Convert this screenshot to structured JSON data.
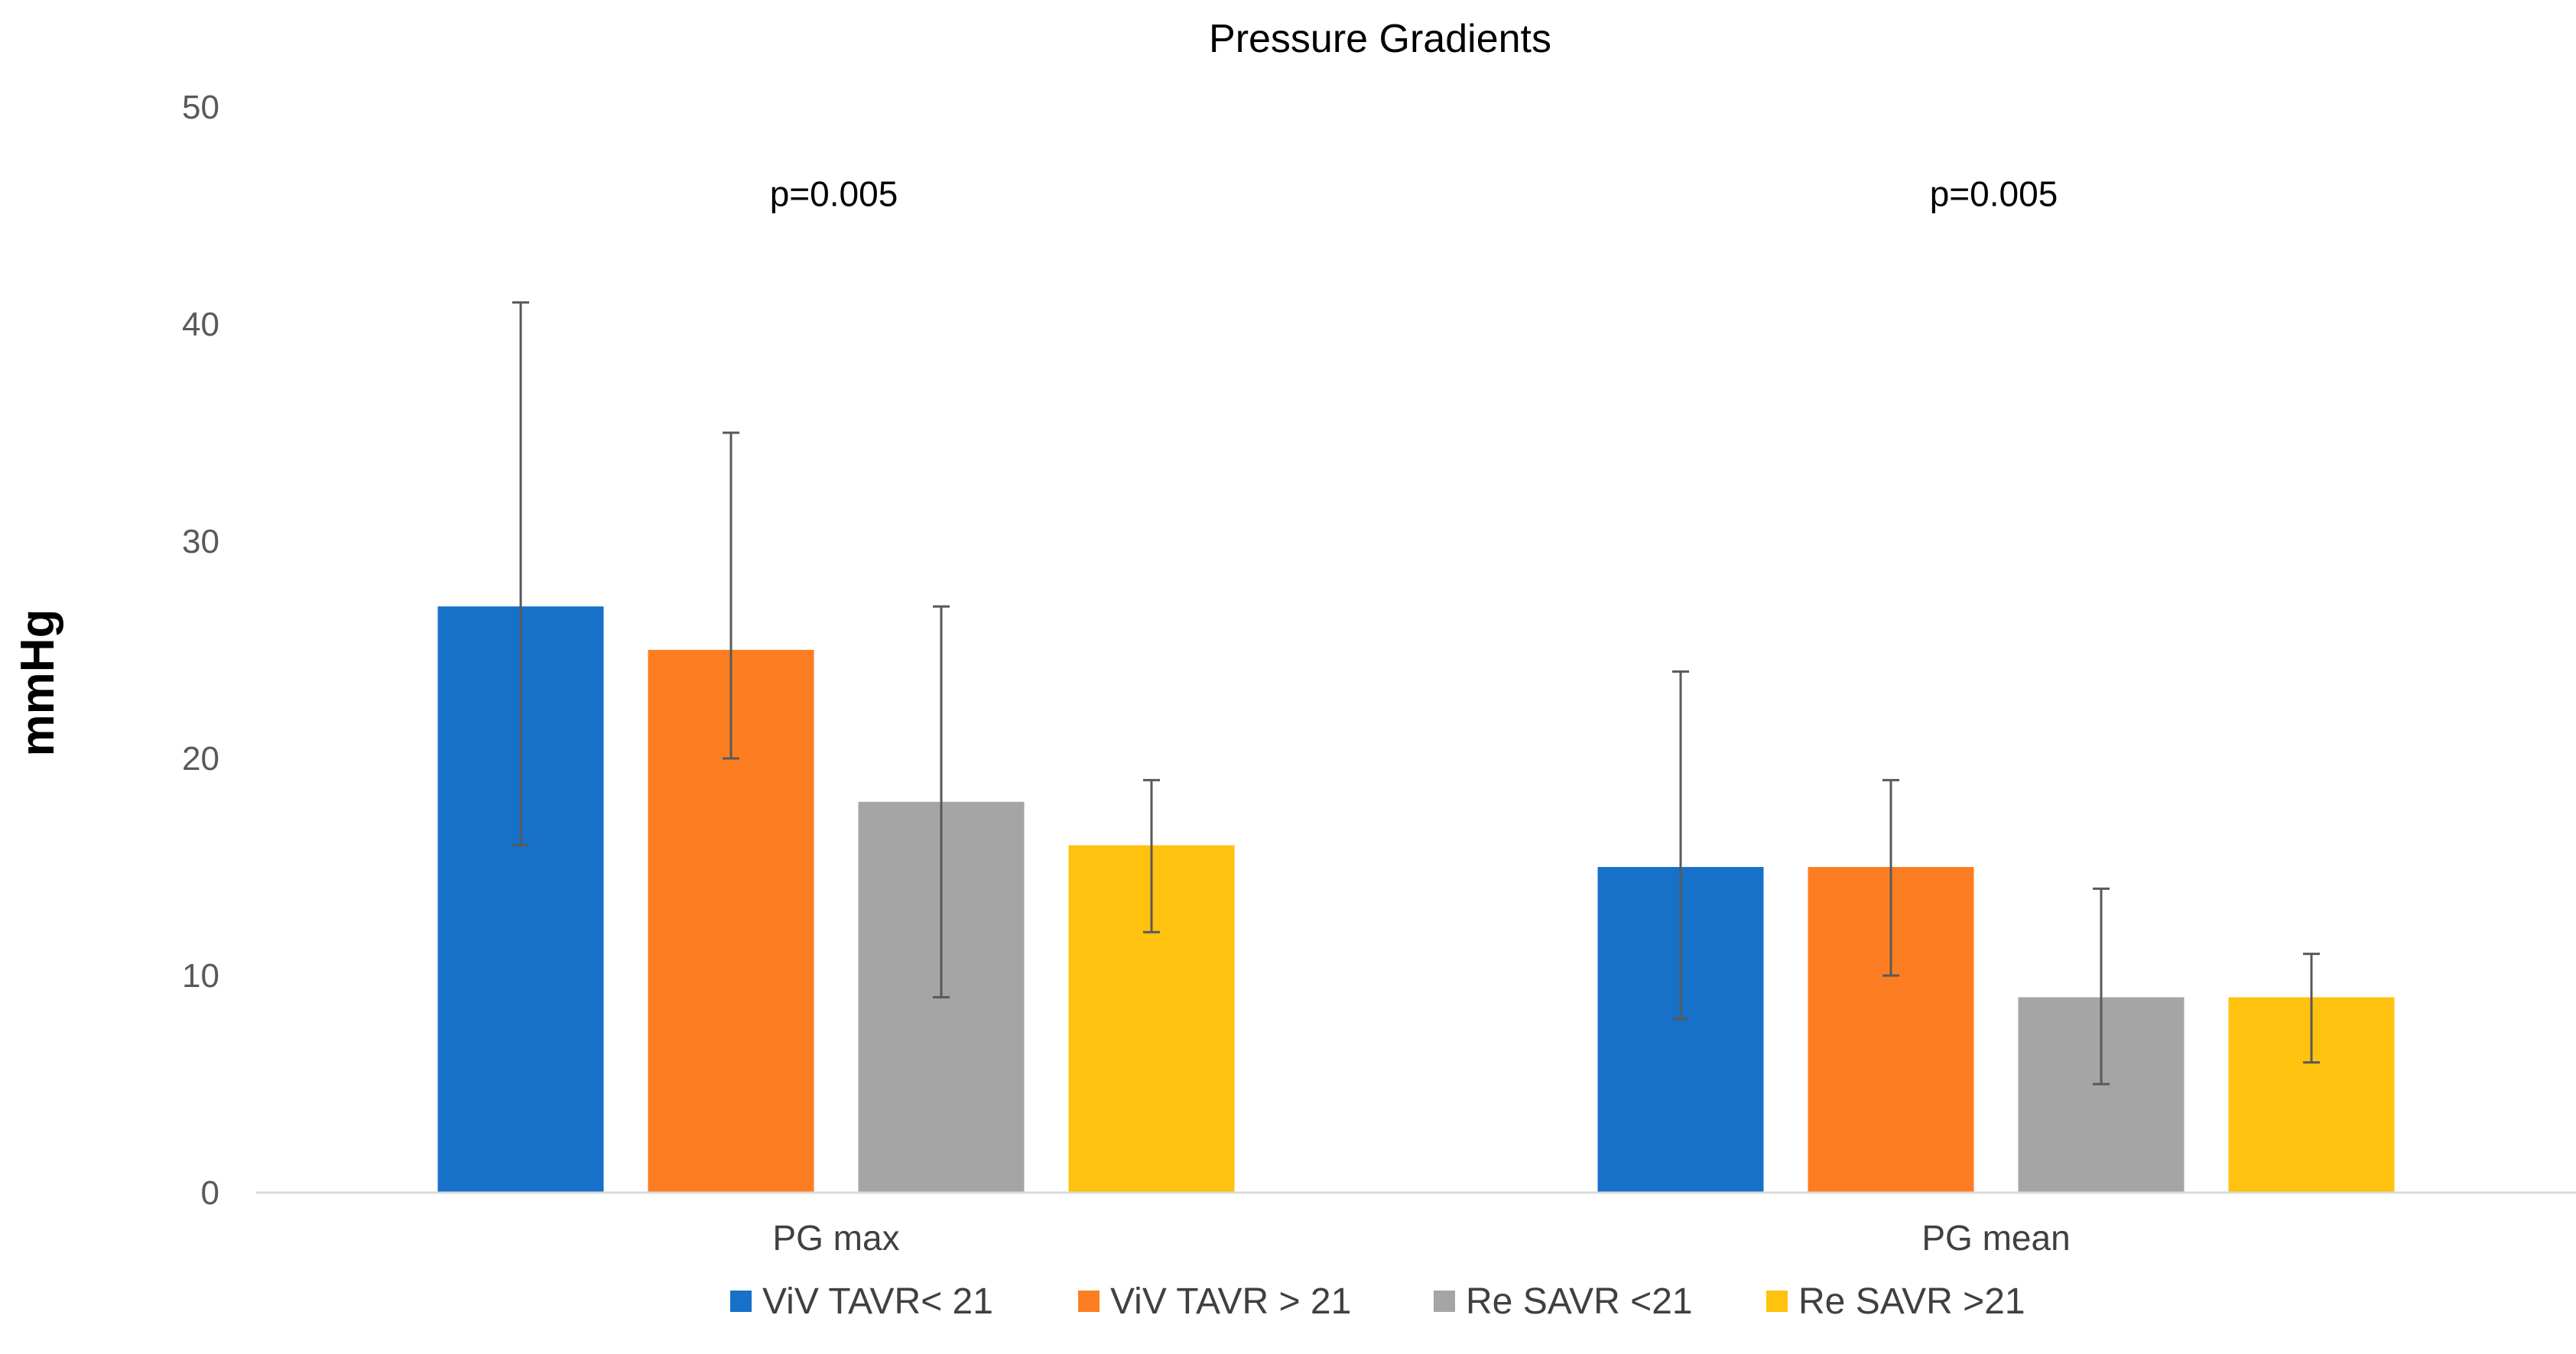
{
  "chart_data": {
    "type": "bar",
    "title": "Pressure Gradients",
    "xlabel": "",
    "ylabel": "mmHg",
    "ylim": [
      0,
      50
    ],
    "yticks": [
      0,
      10,
      20,
      30,
      40,
      50
    ],
    "grid": false,
    "legend_position": "bottom",
    "categories": [
      "PG max",
      "PG mean"
    ],
    "series": [
      {
        "name": "ViV TAVR< 21",
        "color": "#1771C8",
        "values": [
          27,
          15
        ],
        "err_low": [
          16,
          8
        ],
        "err_high": [
          41,
          24
        ]
      },
      {
        "name": "ViV TAVR > 21",
        "color": "#FD7E22",
        "values": [
          25,
          15
        ],
        "err_low": [
          20,
          10
        ],
        "err_high": [
          35,
          19
        ]
      },
      {
        "name": "Re SAVR <21",
        "color": "#A5A5A5",
        "values": [
          18,
          9
        ],
        "err_low": [
          9,
          5
        ],
        "err_high": [
          27,
          14
        ]
      },
      {
        "name": "Re SAVR >21",
        "color": "#FFC20E",
        "values": [
          16,
          9
        ],
        "err_low": [
          12,
          6
        ],
        "err_high": [
          19,
          11
        ]
      }
    ],
    "annotations": [
      {
        "text": "p=0.005",
        "category": "PG max",
        "y": 46
      },
      {
        "text": "p=0.005",
        "category": "PG mean",
        "y": 46
      }
    ]
  }
}
